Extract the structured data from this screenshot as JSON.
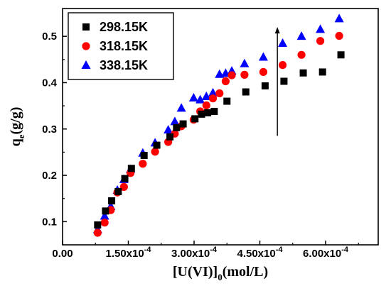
{
  "chart_data": {
    "type": "scatter",
    "title": "",
    "xlabel": "[U(VI)]0(mol/L)",
    "xlabel_parts": {
      "main": "[U(VI)]",
      "subscript": "0",
      "tail": "(mol/L)"
    },
    "ylabel": "qe(g/g)",
    "ylabel_parts": {
      "main": "q",
      "subscript": "e",
      "tail": "(g/g)"
    },
    "xlim": [
      0.0,
      0.00072
    ],
    "ylim": [
      0.05,
      0.56
    ],
    "grid": false,
    "legend_position": "top-left",
    "x_ticks": [
      {
        "value": 0.0,
        "label": "0.00"
      },
      {
        "value": 0.00015,
        "base": "1.50x10",
        "exp": "-4"
      },
      {
        "value": 0.0003,
        "base": "3.00x10",
        "exp": "-4"
      },
      {
        "value": 0.00045,
        "base": "4.50x10",
        "exp": "-4"
      },
      {
        "value": 0.0006,
        "base": "6.00x10",
        "exp": "-4"
      }
    ],
    "y_ticks": [
      {
        "value": 0.1,
        "label": "0.1"
      },
      {
        "value": 0.2,
        "label": "0.2"
      },
      {
        "value": 0.3,
        "label": "0.3"
      },
      {
        "value": 0.4,
        "label": "0.4"
      },
      {
        "value": 0.5,
        "label": "0.5"
      }
    ],
    "series": [
      {
        "name": "298.15K",
        "marker": "square",
        "color": "#000000",
        "x": [
          8e-05,
          9.8e-05,
          0.000112,
          0.000127,
          0.000142,
          0.000157,
          0.000186,
          0.000215,
          0.000245,
          0.00026,
          0.000275,
          0.000302,
          0.000317,
          0.000331,
          0.000346,
          0.000375,
          0.000418,
          0.000462,
          0.000505,
          0.000549,
          0.000593,
          0.000635
        ],
        "y": [
          0.093,
          0.123,
          0.145,
          0.165,
          0.193,
          0.215,
          0.243,
          0.265,
          0.283,
          0.303,
          0.311,
          0.322,
          0.332,
          0.335,
          0.338,
          0.36,
          0.38,
          0.393,
          0.403,
          0.421,
          0.423,
          0.46
        ]
      },
      {
        "name": "318.15K",
        "marker": "circle",
        "color": "#ff0000",
        "x": [
          8e-05,
          9.6e-05,
          0.00011,
          0.000125,
          0.00014,
          0.000155,
          0.000183,
          0.000211,
          0.000241,
          0.000256,
          0.000271,
          0.000299,
          0.000314,
          0.000328,
          0.000343,
          0.000358,
          0.000372,
          0.000386,
          0.000415,
          0.000458,
          0.000502,
          0.000545,
          0.000588,
          0.000631
        ],
        "y": [
          0.076,
          0.098,
          0.125,
          0.163,
          0.175,
          0.205,
          0.225,
          0.251,
          0.272,
          0.29,
          0.306,
          0.32,
          0.338,
          0.351,
          0.366,
          0.377,
          0.403,
          0.416,
          0.417,
          0.423,
          0.438,
          0.46,
          0.49,
          0.501
        ]
      },
      {
        "name": "338.15K",
        "marker": "triangle",
        "color": "#0000ff",
        "x": [
          8e-05,
          9.6e-05,
          0.00011,
          0.000125,
          0.00014,
          0.000155,
          0.000183,
          0.000211,
          0.000241,
          0.000256,
          0.000271,
          0.000299,
          0.000314,
          0.000328,
          0.000343,
          0.000358,
          0.000372,
          0.000386,
          0.000415,
          0.000458,
          0.000502,
          0.000545,
          0.000588,
          0.000631
        ],
        "y": [
          0.083,
          0.112,
          0.133,
          0.168,
          0.191,
          0.213,
          0.248,
          0.27,
          0.298,
          0.316,
          0.345,
          0.367,
          0.363,
          0.37,
          0.378,
          0.418,
          0.42,
          0.425,
          0.441,
          0.455,
          0.485,
          0.5,
          0.515,
          0.538
        ]
      }
    ],
    "annotations": [
      {
        "type": "arrow",
        "x": 0.00049,
        "y_from": 0.285,
        "y_to": 0.52
      }
    ]
  }
}
